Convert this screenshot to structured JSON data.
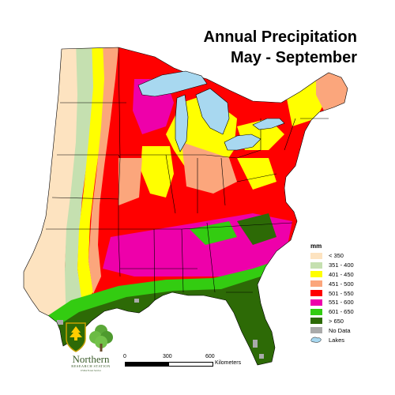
{
  "title_line1": "Annual Precipitation",
  "title_line2": "May - September",
  "legend": {
    "unit": "mm",
    "items": [
      {
        "label": "< 350",
        "color": "#fde3c0"
      },
      {
        "label": "351 - 400",
        "color": "#c5e0b0"
      },
      {
        "label": "401 - 450",
        "color": "#ffff00"
      },
      {
        "label": "451 - 500",
        "color": "#fba67c"
      },
      {
        "label": "501 - 550",
        "color": "#ff0000"
      },
      {
        "label": "551 - 600",
        "color": "#ee00aa"
      },
      {
        "label": "601 - 650",
        "color": "#33cc11"
      },
      {
        "label": "> 650",
        "color": "#2d6a06"
      },
      {
        "label": "No Data",
        "color": "#aaaaaa"
      }
    ],
    "lakes_label": "Lakes",
    "lakes_color": "#a8d8f0"
  },
  "scale_bar": {
    "ticks": [
      "0",
      "300",
      "600"
    ],
    "unit": "Kilometers"
  },
  "logo": {
    "org_name": "Northern",
    "org_sub": "RESEARCH STATION",
    "tiny": "USDA Forest Service"
  }
}
